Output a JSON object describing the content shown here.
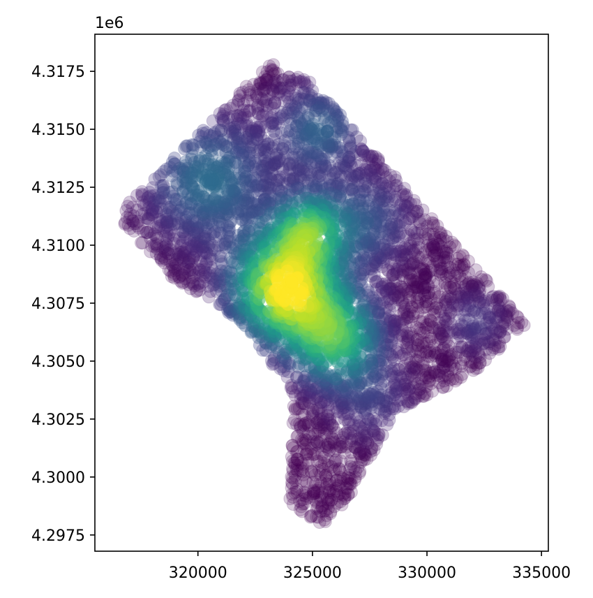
{
  "chart_data": {
    "type": "scatter",
    "title": "",
    "xlabel": "",
    "ylabel": "",
    "y_offset_label": "1e6",
    "xlim": [
      315500,
      335300
    ],
    "ylim": [
      4296800,
      4319100
    ],
    "grid": false,
    "colormap": "viridis",
    "marker_alpha": 0.12,
    "x_ticks": [
      320000,
      325000,
      330000,
      335000
    ],
    "x_tick_labels": [
      "320000",
      "325000",
      "330000",
      "335000"
    ],
    "y_ticks": [
      4297500,
      4300000,
      4302500,
      4305000,
      4307500,
      4310000,
      4312500,
      4315000,
      4317500
    ],
    "y_tick_labels": [
      "4.2975",
      "4.3000",
      "4.3025",
      "4.3050",
      "4.3075",
      "4.3100",
      "4.3125",
      "4.3150",
      "4.3175"
    ],
    "boundary_polygon": [
      [
        316700,
        4311600
      ],
      [
        323200,
        4317900
      ],
      [
        324900,
        4317100
      ],
      [
        331400,
        4309800
      ],
      [
        334300,
        4306600
      ],
      [
        331900,
        4304400
      ],
      [
        328600,
        4302800
      ],
      [
        326500,
        4299000
      ],
      [
        325400,
        4297900
      ],
      [
        324000,
        4298800
      ],
      [
        324200,
        4303600
      ],
      [
        321800,
        4306800
      ],
      [
        318900,
        4308600
      ],
      [
        316700,
        4311000
      ]
    ],
    "density_peaks": [
      {
        "x": 323800,
        "y": 4308200,
        "sigma": 1500,
        "weight": 1.0
      },
      {
        "x": 324800,
        "y": 4310700,
        "sigma": 1000,
        "weight": 0.55
      },
      {
        "x": 326000,
        "y": 4306000,
        "sigma": 1300,
        "weight": 0.65
      },
      {
        "x": 320500,
        "y": 4312800,
        "sigma": 1800,
        "weight": 0.35
      },
      {
        "x": 327200,
        "y": 4311000,
        "sigma": 1400,
        "weight": 0.25
      },
      {
        "x": 325300,
        "y": 4315000,
        "sigma": 1300,
        "weight": 0.3
      },
      {
        "x": 332100,
        "y": 4306700,
        "sigma": 900,
        "weight": 0.15
      },
      {
        "x": 327600,
        "y": 4303300,
        "sigma": 1200,
        "weight": 0.15
      }
    ],
    "color_range": [
      0,
      1
    ]
  }
}
